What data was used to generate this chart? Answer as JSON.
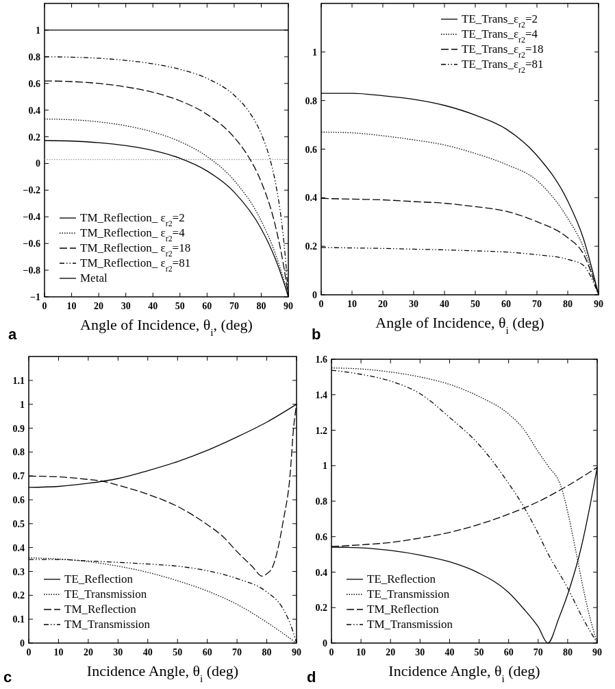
{
  "chart_data": [
    {
      "type": "line",
      "xlabel": "Angle of Incidence, θ$_{i}$, (deg)",
      "xlim": [
        0,
        90
      ],
      "ylim": [
        -1,
        1.2
      ],
      "xticks": [
        0,
        10,
        20,
        30,
        40,
        50,
        60,
        70,
        80,
        90
      ],
      "yticks": [
        -1,
        -0.8,
        -0.6,
        -0.4,
        -0.2,
        0,
        0.2,
        0.4,
        0.6,
        0.8,
        1
      ],
      "legend": "bottom left",
      "annotations": [
        "a"
      ],
      "ref_lines": [
        {
          "axis": "y",
          "value": 0.03,
          "color": "#999999",
          "line_style": "dotted"
        }
      ],
      "series": [
        {
          "name": "TM_Reflection_  ε$_{r2}$=2",
          "color": "#000000",
          "line_style": "solid",
          "x": [
            0,
            10,
            20,
            30,
            40,
            50,
            60,
            70,
            80,
            85,
            88,
            89,
            90
          ],
          "values": [
            0.172,
            0.168,
            0.156,
            0.134,
            0.098,
            0.039,
            -0.056,
            -0.214,
            -0.49,
            -0.704,
            -0.87,
            -0.933,
            -1
          ]
        },
        {
          "name": "TM_Reflection_  ε$_{r2}$=4",
          "color": "#000000",
          "line_style": "dotted",
          "x": [
            0,
            10,
            20,
            30,
            40,
            50,
            60,
            70,
            80,
            85,
            88,
            89,
            90
          ],
          "values": [
            0.333,
            0.328,
            0.312,
            0.283,
            0.236,
            0.164,
            0.052,
            -0.127,
            -0.43,
            -0.665,
            -0.851,
            -0.923,
            -1
          ]
        },
        {
          "name": "TM_Reflection_  ε$_{r2}$=18",
          "color": "#000000",
          "line_style": "dashed",
          "x": [
            0,
            10,
            20,
            30,
            40,
            50,
            60,
            70,
            75,
            80,
            85,
            88,
            89,
            90
          ],
          "values": [
            0.619,
            0.614,
            0.6,
            0.574,
            0.534,
            0.47,
            0.368,
            0.196,
            0.06,
            -0.138,
            -0.449,
            -0.736,
            -0.858,
            -1
          ]
        },
        {
          "name": "TM_Reflection_  ε$_{r2}$=81",
          "color": "#000000",
          "line_style": "dashdot",
          "x": [
            0,
            10,
            20,
            30,
            40,
            50,
            60,
            70,
            75,
            80,
            83,
            85,
            88,
            89,
            90
          ],
          "values": [
            0.8,
            0.797,
            0.789,
            0.773,
            0.747,
            0.706,
            0.638,
            0.512,
            0.402,
            0.222,
            0.049,
            -0.118,
            -0.52,
            -0.727,
            -1
          ]
        },
        {
          "name": "Metal",
          "color": "#000000",
          "line_style": "solid",
          "x": [
            0,
            90
          ],
          "values": [
            1,
            1
          ]
        }
      ]
    },
    {
      "type": "line",
      "xlabel": "Angle of Incidence, θ$_{i}$ (deg)",
      "xlim": [
        0,
        90
      ],
      "ylim": [
        0,
        1.2
      ],
      "xticks": [
        0,
        10,
        20,
        30,
        40,
        50,
        60,
        70,
        80,
        90
      ],
      "yticks": [
        0,
        0.2,
        0.4,
        0.6,
        0.8,
        1
      ],
      "legend": "top right",
      "annotations": [
        "b"
      ],
      "series": [
        {
          "name": "TE_Trans_ε$_{r2}$=2",
          "color": "#000000",
          "line_style": "solid",
          "x": [
            0,
            10,
            20,
            30,
            40,
            50,
            60,
            70,
            80,
            85,
            90
          ],
          "values": [
            0.83,
            0.83,
            0.82,
            0.805,
            0.78,
            0.74,
            0.683,
            0.574,
            0.386,
            0.235,
            0
          ]
        },
        {
          "name": "TE_Trans_ε$_{r2}$=4",
          "color": "#000000",
          "line_style": "dotted",
          "x": [
            0,
            10,
            20,
            30,
            40,
            50,
            60,
            70,
            80,
            85,
            90
          ],
          "values": [
            0.67,
            0.667,
            0.655,
            0.638,
            0.617,
            0.582,
            0.537,
            0.471,
            0.315,
            0.198,
            0
          ]
        },
        {
          "name": "TE_Trans_ε$_{r2}$=18",
          "color": "#000000",
          "line_style": "dashed",
          "x": [
            0,
            10,
            20,
            30,
            40,
            50,
            60,
            70,
            80,
            85,
            90
          ],
          "values": [
            0.397,
            0.394,
            0.391,
            0.384,
            0.377,
            0.363,
            0.344,
            0.301,
            0.235,
            0.17,
            0
          ]
        },
        {
          "name": "TE_Trans_ε$_{r2}$=81",
          "color": "#000000",
          "line_style": "dashdot",
          "x": [
            0,
            10,
            20,
            30,
            40,
            50,
            60,
            70,
            80,
            85,
            90
          ],
          "values": [
            0.195,
            0.193,
            0.191,
            0.188,
            0.185,
            0.181,
            0.176,
            0.165,
            0.146,
            0.122,
            0
          ]
        }
      ]
    },
    {
      "type": "line",
      "xlabel": "Incidence Angle,  θ$_{i}$ (deg)",
      "xlim": [
        0,
        90
      ],
      "ylim": [
        0,
        1.2
      ],
      "xticks": [
        0,
        10,
        20,
        30,
        40,
        50,
        60,
        70,
        80,
        90
      ],
      "yticks": [
        0,
        0.1,
        0.2,
        0.3,
        0.4,
        0.5,
        0.6,
        0.7,
        0.8,
        0.9,
        1,
        1.1
      ],
      "legend": "bottom left",
      "annotations": [
        "c"
      ],
      "series": [
        {
          "name": "TE_Reflection",
          "color": "#000000",
          "line_style": "solid",
          "x": [
            0,
            10,
            20,
            30,
            40,
            50,
            60,
            70,
            80,
            90
          ],
          "values": [
            0.652,
            0.656,
            0.669,
            0.689,
            0.722,
            0.76,
            0.807,
            0.863,
            0.925,
            1
          ]
        },
        {
          "name": "TE_Transmission",
          "color": "#000000",
          "line_style": "dotted",
          "x": [
            0,
            10,
            20,
            30,
            40,
            50,
            60,
            70,
            80,
            90
          ],
          "values": [
            0.357,
            0.352,
            0.341,
            0.322,
            0.296,
            0.261,
            0.218,
            0.162,
            0.087,
            0
          ]
        },
        {
          "name": "TM_Reflection",
          "color": "#000000",
          "line_style": "dashed",
          "x": [
            0,
            10,
            20,
            25,
            30,
            40,
            50,
            60,
            65,
            70,
            75,
            78.5,
            80,
            82,
            84,
            85.5,
            87.8,
            89,
            90
          ],
          "values": [
            0.699,
            0.696,
            0.685,
            0.677,
            0.661,
            0.623,
            0.572,
            0.496,
            0.449,
            0.383,
            0.322,
            0.28,
            0.29,
            0.32,
            0.41,
            0.51,
            0.7,
            0.9,
            1
          ]
        },
        {
          "name": "TM_Transmission",
          "color": "#000000",
          "line_style": "dashdot",
          "x": [
            0,
            10,
            20,
            30,
            40,
            50,
            60,
            70,
            80,
            85,
            88,
            90
          ],
          "values": [
            0.35,
            0.35,
            0.344,
            0.338,
            0.331,
            0.322,
            0.303,
            0.27,
            0.214,
            0.153,
            0.077,
            0
          ]
        }
      ]
    },
    {
      "type": "line",
      "xlabel": "Incidence Angle, θ$_{i}$ (deg)",
      "xlim": [
        0,
        90
      ],
      "ylim": [
        0,
        1.6
      ],
      "xticks": [
        0,
        10,
        20,
        30,
        40,
        50,
        60,
        70,
        80,
        90
      ],
      "yticks": [
        0,
        0.2,
        0.4,
        0.6,
        0.8,
        1,
        1.2,
        1.4,
        1.6
      ],
      "legend": "bottom left",
      "annotations": [
        "d"
      ],
      "series": [
        {
          "name": "TE_Reflection",
          "color": "#000000",
          "line_style": "solid",
          "x": [
            0,
            10,
            20,
            30,
            40,
            50,
            60,
            65,
            70,
            73.3,
            77,
            80.7,
            84.6,
            87.7,
            90
          ],
          "values": [
            0.541,
            0.537,
            0.522,
            0.496,
            0.458,
            0.394,
            0.285,
            0.195,
            0.092,
            0,
            0.14,
            0.31,
            0.54,
            0.785,
            0.99
          ]
        },
        {
          "name": "TE_Transmission",
          "color": "#000000",
          "line_style": "dotted",
          "x": [
            0,
            10,
            20,
            30,
            40,
            50,
            60,
            65,
            70,
            73.3,
            78,
            80,
            83,
            85,
            87,
            90
          ],
          "values": [
            1.551,
            1.545,
            1.528,
            1.5,
            1.458,
            1.39,
            1.291,
            1.208,
            1.079,
            1,
            0.87,
            0.74,
            0.5,
            0.33,
            0.18,
            0
          ]
        },
        {
          "name": "TM_Reflection",
          "color": "#000000",
          "line_style": "dashed",
          "x": [
            0,
            10,
            20,
            30,
            40,
            50,
            60,
            70,
            80,
            90
          ],
          "values": [
            0.544,
            0.554,
            0.567,
            0.592,
            0.624,
            0.669,
            0.727,
            0.797,
            0.887,
            0.99
          ]
        },
        {
          "name": "TM_Transmission",
          "color": "#000000",
          "line_style": "dashdot",
          "x": [
            0,
            10,
            20,
            30,
            40,
            50,
            60,
            65,
            70,
            73,
            80,
            85,
            90
          ],
          "values": [
            1.538,
            1.515,
            1.477,
            1.406,
            1.272,
            1.118,
            0.9,
            0.772,
            0.618,
            0.515,
            0.31,
            0.144,
            0
          ]
        }
      ]
    }
  ]
}
